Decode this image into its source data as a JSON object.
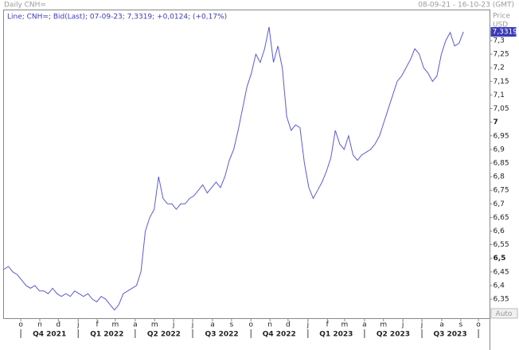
{
  "chart_data": {
    "type": "line",
    "title": "Daily CNH=",
    "date_range": "08-09-21 - 16-10-23 (GMT)",
    "legend_text": "Line; CNH=; Bid(Last); 07-09-23; 7,3319; +0,0124; (+0,17%)",
    "y_axis_title": "Price",
    "y_axis_unit": "USD",
    "scale_button": "Auto",
    "series": [
      {
        "name": "CNH=",
        "color": "#5a5ad6",
        "values": [
          6.46,
          6.47,
          6.45,
          6.44,
          6.42,
          6.4,
          6.39,
          6.4,
          6.38,
          6.38,
          6.37,
          6.39,
          6.37,
          6.36,
          6.37,
          6.36,
          6.38,
          6.37,
          6.36,
          6.37,
          6.35,
          6.34,
          6.36,
          6.35,
          6.33,
          6.31,
          6.33,
          6.37,
          6.38,
          6.39,
          6.4,
          6.45,
          6.6,
          6.65,
          6.68,
          6.8,
          6.72,
          6.7,
          6.7,
          6.68,
          6.7,
          6.7,
          6.72,
          6.73,
          6.75,
          6.77,
          6.74,
          6.76,
          6.78,
          6.76,
          6.8,
          6.86,
          6.9,
          6.97,
          7.05,
          7.13,
          7.18,
          7.25,
          7.22,
          7.27,
          7.35,
          7.22,
          7.28,
          7.2,
          7.02,
          6.97,
          6.99,
          6.98,
          6.85,
          6.76,
          6.72,
          6.75,
          6.78,
          6.82,
          6.87,
          6.97,
          6.92,
          6.9,
          6.95,
          6.88,
          6.86,
          6.88,
          6.89,
          6.9,
          6.92,
          6.95,
          7.0,
          7.05,
          7.1,
          7.15,
          7.17,
          7.2,
          7.23,
          7.27,
          7.25,
          7.2,
          7.18,
          7.15,
          7.17,
          7.25,
          7.3,
          7.33,
          7.28,
          7.29,
          7.3319
        ]
      }
    ],
    "last_value": {
      "value": 7.3319,
      "label": "7,3319"
    },
    "xlim": [
      0,
      110
    ],
    "xticks": [
      {
        "value": 3.8,
        "label": "o"
      },
      {
        "value": 8.1,
        "label": "n"
      },
      {
        "value": 12.3,
        "label": "d"
      },
      {
        "value": 16.8,
        "label": "j"
      },
      {
        "value": 21.1,
        "label": "f"
      },
      {
        "value": 25.2,
        "label": "m"
      },
      {
        "value": 29.7,
        "label": "a"
      },
      {
        "value": 34.1,
        "label": "m"
      },
      {
        "value": 38.4,
        "label": "j"
      },
      {
        "value": 42.7,
        "label": "j"
      },
      {
        "value": 47.2,
        "label": "a"
      },
      {
        "value": 51.5,
        "label": "s"
      },
      {
        "value": 55.9,
        "label": "o"
      },
      {
        "value": 60.2,
        "label": "n"
      },
      {
        "value": 64.3,
        "label": "d"
      },
      {
        "value": 68.8,
        "label": "j"
      },
      {
        "value": 73.2,
        "label": "f"
      },
      {
        "value": 77.1,
        "label": "m"
      },
      {
        "value": 81.6,
        "label": "a"
      },
      {
        "value": 85.9,
        "label": "m"
      },
      {
        "value": 90.3,
        "label": "j"
      },
      {
        "value": 94.6,
        "label": "j"
      },
      {
        "value": 99.1,
        "label": "a"
      },
      {
        "value": 103.4,
        "label": "s"
      },
      {
        "value": 107.4,
        "label": "o"
      }
    ],
    "quarter_ticks": [
      {
        "value": 10.3,
        "label": "Q4 2021"
      },
      {
        "value": 23.3,
        "label": "Q1 2022"
      },
      {
        "value": 36.2,
        "label": "Q2 2022"
      },
      {
        "value": 49.3,
        "label": "Q3 2022"
      },
      {
        "value": 62.3,
        "label": "Q4 2022"
      },
      {
        "value": 75.2,
        "label": "Q1 2023"
      },
      {
        "value": 88.1,
        "label": "Q2 2023"
      },
      {
        "value": 101.0,
        "label": "Q3 2023"
      }
    ],
    "ylim": [
      6.28,
      7.414
    ],
    "yticks": [
      {
        "value": 6.35,
        "label": "6,35"
      },
      {
        "value": 6.4,
        "label": "6,4"
      },
      {
        "value": 6.45,
        "label": "6,45"
      },
      {
        "value": 6.5,
        "label": "6,5"
      },
      {
        "value": 6.55,
        "label": "6,55"
      },
      {
        "value": 6.6,
        "label": "6,6"
      },
      {
        "value": 6.65,
        "label": "6,65"
      },
      {
        "value": 6.7,
        "label": "6,7"
      },
      {
        "value": 6.75,
        "label": "6,75"
      },
      {
        "value": 6.8,
        "label": "6,8"
      },
      {
        "value": 6.85,
        "label": "6,85"
      },
      {
        "value": 6.9,
        "label": "6,9"
      },
      {
        "value": 6.95,
        "label": "6,95"
      },
      7,
      {
        "value": 7.05,
        "label": "7,05"
      },
      {
        "value": 7.1,
        "label": "7,1"
      },
      {
        "value": 7.15,
        "label": "7,15"
      },
      {
        "value": 7.2,
        "label": "7,2"
      },
      {
        "value": 7.25,
        "label": "7,25"
      },
      {
        "value": 7.3,
        "label": "7,3"
      }
    ],
    "grid": false
  }
}
